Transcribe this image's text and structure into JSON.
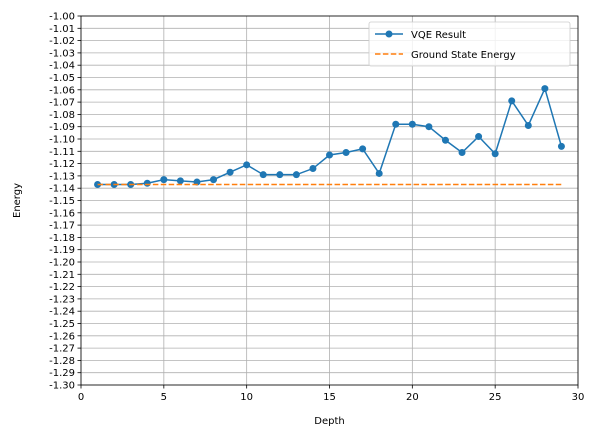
{
  "chart_data": {
    "type": "line",
    "xlabel": "Depth",
    "ylabel": "Energy",
    "xlim": [
      0,
      30
    ],
    "ylim": [
      -1.3,
      -1.0
    ],
    "xticks": [
      "0",
      "5",
      "10",
      "15",
      "20",
      "25",
      "30"
    ],
    "yticks": [
      "-1.00",
      "-1.01",
      "-1.02",
      "-1.03",
      "-1.04",
      "-1.05",
      "-1.06",
      "-1.07",
      "-1.08",
      "-1.09",
      "-1.10",
      "-1.11",
      "-1.12",
      "-1.13",
      "-1.14",
      "-1.15",
      "-1.16",
      "-1.17",
      "-1.18",
      "-1.19",
      "-1.20",
      "-1.21",
      "-1.22",
      "-1.23",
      "-1.24",
      "-1.25",
      "-1.26",
      "-1.27",
      "-1.28",
      "-1.29",
      "-1.30"
    ],
    "grid": true,
    "legend_position": "top-right",
    "series": [
      {
        "name": "VQE Result",
        "style": "solid-markers",
        "color": "#1f77b4",
        "x": [
          1,
          2,
          3,
          4,
          5,
          6,
          7,
          8,
          9,
          10,
          11,
          12,
          13,
          14,
          15,
          16,
          17,
          18,
          19,
          20,
          21,
          22,
          23,
          24,
          25,
          26,
          27,
          28,
          29
        ],
        "values": [
          -1.137,
          -1.137,
          -1.137,
          -1.136,
          -1.133,
          -1.134,
          -1.135,
          -1.133,
          -1.127,
          -1.121,
          -1.129,
          -1.129,
          -1.129,
          -1.124,
          -1.113,
          -1.111,
          -1.108,
          -1.128,
          -1.088,
          -1.088,
          -1.09,
          -1.101,
          -1.111,
          -1.098,
          -1.112,
          -1.069,
          -1.089,
          -1.059,
          -1.106
        ]
      },
      {
        "name": "Ground State Energy",
        "style": "dashed",
        "color": "#ff7f0e",
        "x": [
          1,
          29
        ],
        "values": [
          -1.137,
          -1.137
        ]
      }
    ]
  }
}
